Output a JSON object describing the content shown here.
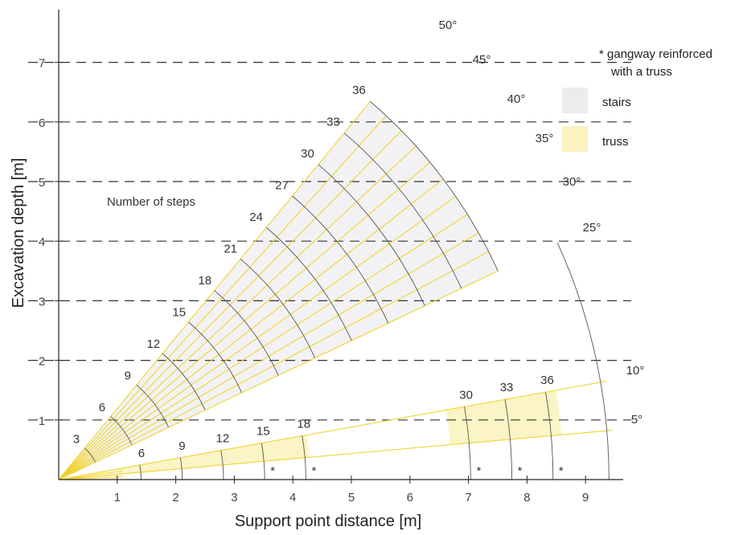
{
  "chart_data": {
    "type": "diagram-chart",
    "xlabel": "Support point distance [m]",
    "ylabel": "Excavation depth [m]",
    "xlim": [
      0,
      9.4
    ],
    "ylim": [
      0,
      7.8
    ],
    "x_ticks": [
      1,
      2,
      3,
      4,
      5,
      6,
      7,
      8,
      9
    ],
    "y_ticks": [
      1,
      2,
      3,
      4,
      5,
      6,
      7
    ],
    "dashed_gridlines_y": [
      1,
      2,
      3,
      4,
      5,
      6,
      7
    ],
    "annotation": "Number of steps",
    "footnote_lines": [
      "* gangway reinforced",
      "with a truss"
    ],
    "legend": [
      {
        "label": "stairs",
        "color": "#ececef"
      },
      {
        "label": "truss",
        "color": "#faf2c0"
      }
    ],
    "colors": {
      "ray": "#f0d430",
      "arc": "#555555",
      "stairs_fill": "#f2f2f4",
      "truss_fill": "#fbf4c6",
      "grid": "#333333"
    },
    "angles": [
      5,
      10,
      25,
      30,
      35,
      40,
      45,
      50
    ],
    "angle_labels": [
      "5°",
      "10°",
      "25°",
      "30°",
      "35°",
      "40°",
      "45°",
      "50°"
    ],
    "stairs_sector": {
      "angle_range": [
        25,
        50
      ],
      "ray_angles": [
        25,
        27.5,
        30,
        32.5,
        35,
        37.5,
        40,
        42.5,
        45,
        47.5,
        50
      ],
      "steps": [
        3,
        6,
        9,
        12,
        15,
        18,
        21,
        24,
        27,
        30,
        33,
        36
      ]
    },
    "truss_sector": {
      "angle_range": [
        5,
        10
      ],
      "steps_inner": [
        6,
        9,
        12,
        15,
        18
      ],
      "steps_outer": [
        30,
        33,
        36
      ],
      "asterisk_steps": [
        15,
        18,
        30,
        33,
        36
      ]
    },
    "step_labels": [
      "3",
      "6",
      "9",
      "12",
      "15",
      "18",
      "21",
      "24",
      "27",
      "30",
      "33",
      "36"
    ],
    "truss_step_labels": [
      "6",
      "9",
      "12",
      "15",
      "18",
      "30",
      "33",
      "36"
    ],
    "asterisk": "*"
  }
}
